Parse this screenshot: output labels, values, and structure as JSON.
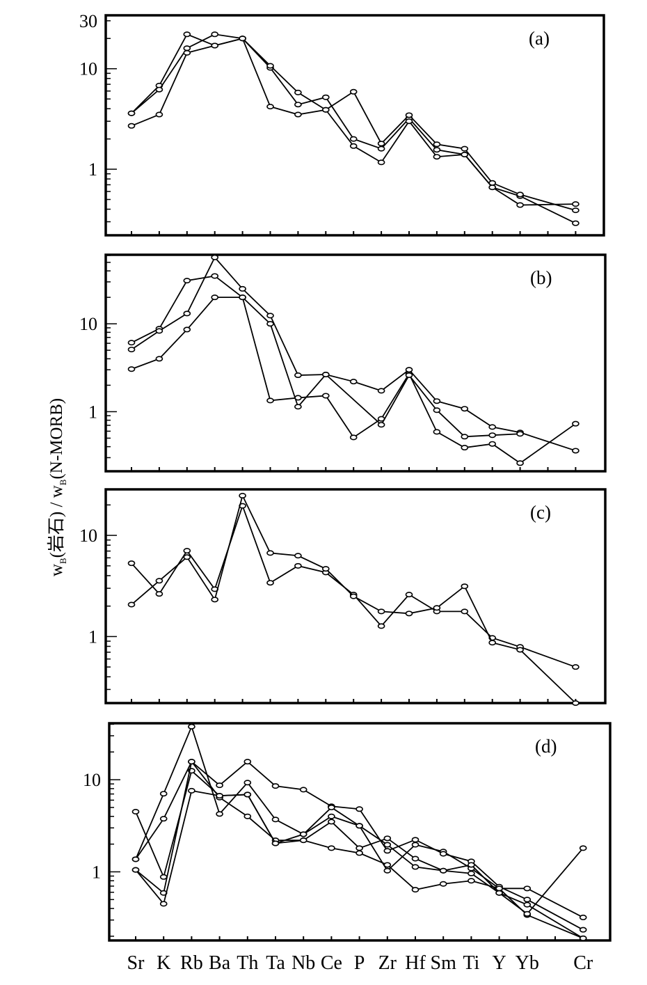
{
  "chart_data": {
    "type": "line",
    "yscale": "log",
    "categories": [
      "Sr",
      "K",
      "Rb",
      "Ba",
      "Th",
      "Ta",
      "Nb",
      "Ce",
      "P",
      "Zr",
      "Hf",
      "Sm",
      "Ti",
      "Y",
      "Yb",
      "",
      "Cr"
    ],
    "ylabel_parts": [
      "w",
      "B",
      "(岩石) / ",
      "w",
      "B",
      "(N-MORB)"
    ],
    "colors": {
      "line": "#000000",
      "marker_fill": "#ffffff"
    },
    "panels": [
      {
        "label": "(a)",
        "ylim": [
          0.22,
          34
        ],
        "yticks": [
          {
            "v": 30,
            "t": "30"
          },
          {
            "v": 10,
            "t": "10"
          },
          {
            "v": 1,
            "t": "1"
          }
        ],
        "series": [
          {
            "name": "a1",
            "values": [
              3.6,
              6.8,
              22,
              17,
              20,
              10.2,
              4.4,
              5.2,
              2.0,
              1.6,
              3.2,
              1.56,
              1.4,
              0.66,
              0.44,
              null,
              0.45
            ]
          },
          {
            "name": "a2",
            "values": [
              3.6,
              6.2,
              16,
              22,
              20,
              10.7,
              5.8,
              3.9,
              1.7,
              1.17,
              3.0,
              1.33,
              1.4,
              0.66,
              0.54,
              null,
              0.29
            ]
          },
          {
            "name": "a3",
            "values": [
              2.7,
              3.5,
              14.4,
              17,
              20,
              4.2,
              3.5,
              3.9,
              5.9,
              1.8,
              3.45,
              1.77,
              1.6,
              0.73,
              0.56,
              null,
              0.39
            ]
          }
        ]
      },
      {
        "label": "(b)",
        "ylim": [
          0.21,
          61
        ],
        "yticks": [
          {
            "v": 10,
            "t": "10"
          },
          {
            "v": 1,
            "t": "1"
          }
        ],
        "series": [
          {
            "name": "b1",
            "values": [
              6.1,
              8.8,
              31,
              35,
              20,
              1.34,
              1.44,
              1.52,
              0.51,
              0.83,
              2.7,
              0.59,
              0.39,
              0.43,
              0.26,
              null,
              0.73
            ]
          },
          {
            "name": "b2",
            "values": [
              5.1,
              8.3,
              13.1,
              57,
              25,
              12.4,
              2.6,
              2.65,
              2.2,
              1.73,
              3.0,
              1.32,
              1.08,
              0.67,
              0.58,
              null,
              0.36
            ]
          },
          {
            "name": "b3",
            "values": [
              3.05,
              4.0,
              8.6,
              20,
              20,
              10,
              1.14,
              2.65,
              null,
              0.71,
              2.6,
              1.04,
              0.52,
              0.54,
              0.56,
              null,
              null
            ]
          }
        ]
      },
      {
        "label": "(c)",
        "ylim": [
          0.22,
          28.5
        ],
        "yticks": [
          {
            "v": 10,
            "t": "10"
          },
          {
            "v": 1,
            "t": "1"
          }
        ],
        "series": [
          {
            "name": "c1",
            "values": [
              5.3,
              2.64,
              7.05,
              2.94,
              19.6,
              3.4,
              5.0,
              4.3,
              2.6,
              1.27,
              2.6,
              1.77,
              1.77,
              0.97,
              0.79,
              null,
              0.5
            ]
          },
          {
            "name": "c2",
            "values": [
              2.07,
              3.56,
              6.1,
              2.32,
              24.7,
              6.7,
              6.3,
              4.67,
              2.5,
              1.77,
              1.69,
              1.92,
              3.14,
              0.87,
              0.74,
              null,
              0.22
            ]
          }
        ]
      },
      {
        "label": "(d)",
        "ylim": [
          0.18,
          41
        ],
        "yticks": [
          {
            "v": 10,
            "t": "10"
          },
          {
            "v": 1,
            "t": "1"
          }
        ],
        "series": [
          {
            "name": "d1",
            "values": [
              1.37,
              7.05,
              37.7,
              4.25,
              9.3,
              3.7,
              2.56,
              4.0,
              3.16,
              1.03,
              1.97,
              1.66,
              1.09,
              0.66,
              0.34,
              null,
              0.19
            ]
          },
          {
            "name": "d2",
            "values": [
              1.37,
              3.77,
              15.7,
              8.7,
              15.7,
              8.55,
              7.8,
              5.15,
              4.8,
              1.69,
              2.23,
              1.57,
              1.3,
              0.69,
              0.5,
              null,
              0.235
            ]
          },
          {
            "name": "d3",
            "values": [
              4.5,
              0.88,
              12.5,
              6.7,
              6.9,
              2.04,
              2.2,
              3.5,
              1.81,
              2.31,
              1.39,
              1.03,
              0.96,
              0.59,
              0.35,
              null,
              1.81
            ]
          },
          {
            "name": "d4",
            "values": [
              1.05,
              0.59,
              15.7,
              6.4,
              4.0,
              2.2,
              2.2,
              1.81,
              1.6,
              1.19,
              0.64,
              0.74,
              0.8,
              0.66,
              0.66,
              null,
              0.32
            ]
          },
          {
            "name": "d5",
            "values": [
              1.05,
              0.45,
              7.6,
              6.7,
              6.9,
              2.04,
              2.56,
              5.0,
              3.16,
              1.97,
              1.13,
              1.03,
              1.19,
              0.59,
              0.44,
              null,
              0.19
            ]
          }
        ]
      }
    ]
  }
}
